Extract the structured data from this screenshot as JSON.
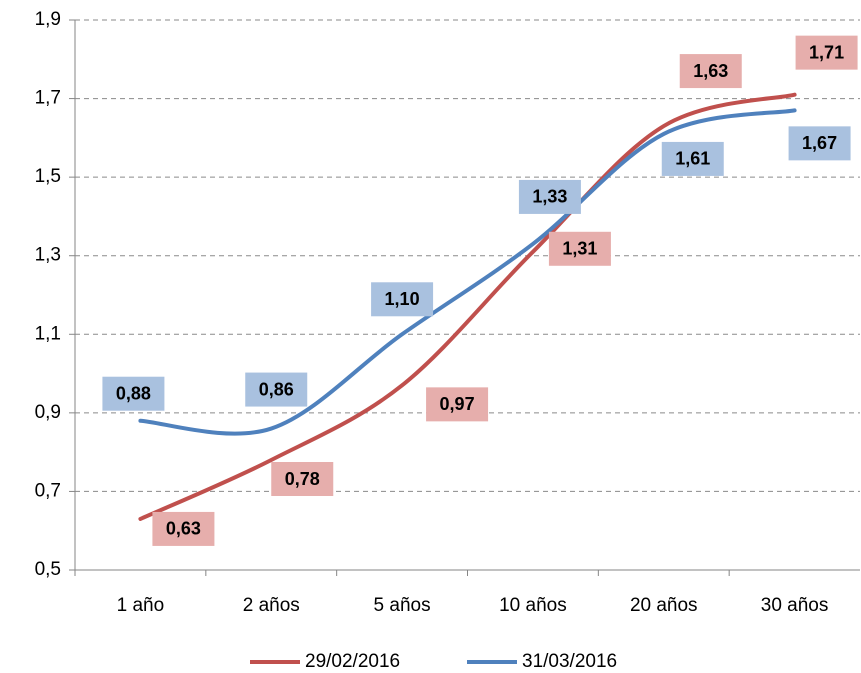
{
  "chart_data": {
    "type": "line",
    "categories": [
      "1 año",
      "2 años",
      "5 años",
      "10 años",
      "20 años",
      "30 años"
    ],
    "series": [
      {
        "name": "29/02/2016",
        "color": "#c0504d",
        "label_color": "#e6aeac",
        "values": [
          0.63,
          0.78,
          0.97,
          1.31,
          1.63,
          1.71
        ],
        "value_labels": [
          "0,63",
          "0,78",
          "0,97",
          "1,31",
          "1,63",
          "1,71"
        ]
      },
      {
        "name": "31/03/2016",
        "color": "#4f81bd",
        "label_color": "#a9c1df",
        "values": [
          0.88,
          0.86,
          1.1,
          1.33,
          1.61,
          1.67
        ],
        "value_labels": [
          "0,88",
          "0,86",
          "1,10",
          "1,33",
          "1,61",
          "1,67"
        ]
      }
    ],
    "ylim": [
      0.5,
      1.9
    ],
    "yticks": [
      {
        "value": 0.5,
        "label": "0,5"
      },
      {
        "value": 0.7,
        "label": "0,7"
      },
      {
        "value": 0.9,
        "label": "0,9"
      },
      {
        "value": 1.1,
        "label": "1,1"
      },
      {
        "value": 1.3,
        "label": "1,3"
      },
      {
        "value": 1.5,
        "label": "1,5"
      },
      {
        "value": 1.7,
        "label": "1,7"
      },
      {
        "value": 1.9,
        "label": "1,9"
      }
    ],
    "grid": true,
    "legend": "bottom"
  }
}
